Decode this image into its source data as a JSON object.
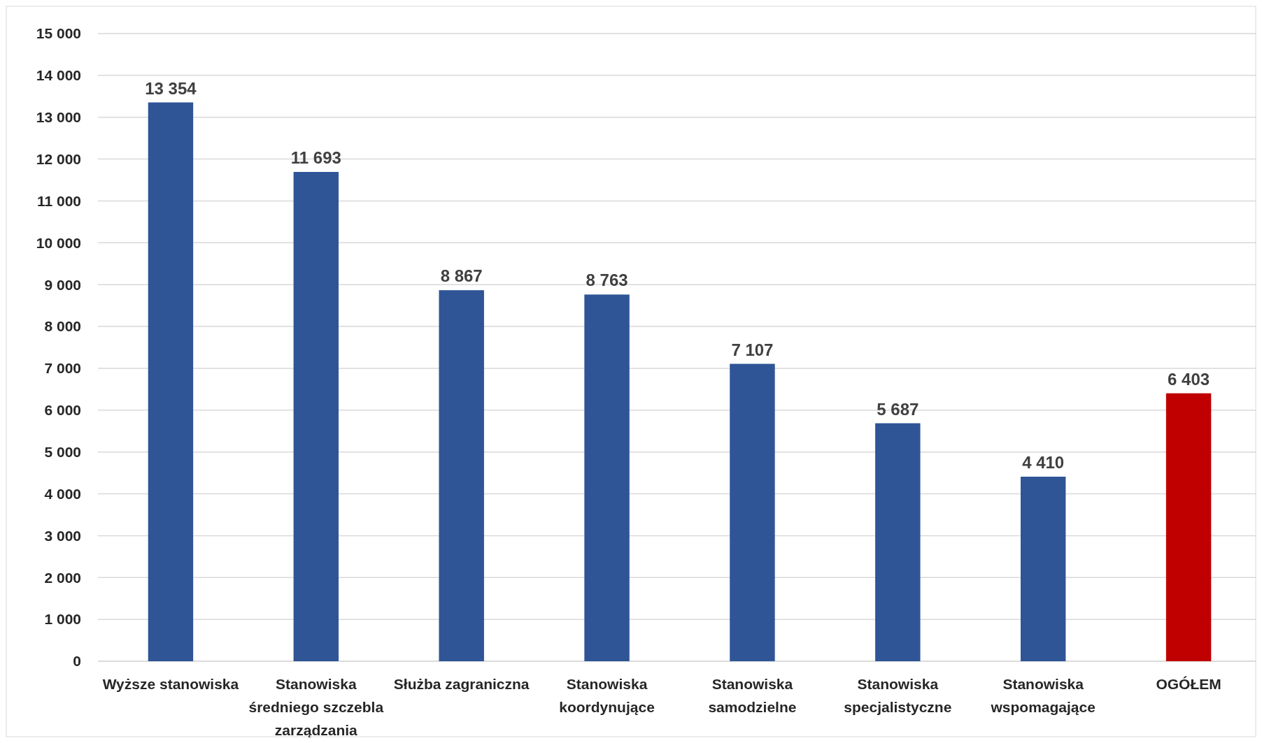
{
  "chart_data": {
    "type": "bar",
    "categories": [
      "Wyższe stanowiska",
      "Stanowiska średniego szczebla zarządzania",
      "Służba zagraniczna",
      "Stanowiska koordynujące",
      "Stanowiska samodzielne",
      "Stanowiska specjalistyczne",
      "Stanowiska wspomagające",
      "OGÓŁEM"
    ],
    "values": [
      13354,
      11693,
      8867,
      8763,
      7107,
      5687,
      4410,
      6403
    ],
    "value_labels": [
      "13 354",
      "11 693",
      "8 867",
      "8 763",
      "7 107",
      "5 687",
      "4 410",
      "6 403"
    ],
    "colors": [
      "#2f5597",
      "#2f5597",
      "#2f5597",
      "#2f5597",
      "#2f5597",
      "#2f5597",
      "#2f5597",
      "#c00000"
    ],
    "ylim": [
      0,
      15000
    ],
    "yticks": [
      0,
      {
        "value": 1000,
        "label": "1 000"
      },
      {
        "value": 2000,
        "label": "2 000"
      },
      {
        "value": 3000,
        "label": "3 000"
      },
      {
        "value": 4000,
        "label": "4 000"
      },
      {
        "value": 5000,
        "label": "5 000"
      },
      {
        "value": 6000,
        "label": "6 000"
      },
      {
        "value": 7000,
        "label": "7 000"
      },
      {
        "value": 8000,
        "label": "8 000"
      },
      {
        "value": 9000,
        "label": "9 000"
      },
      {
        "value": 10000,
        "label": "10 000"
      },
      {
        "value": 11000,
        "label": "11 000"
      },
      {
        "value": 12000,
        "label": "12 000"
      },
      {
        "value": 13000,
        "label": "13 000"
      },
      {
        "value": 14000,
        "label": "14 000"
      },
      {
        "value": 15000,
        "label": "15 000"
      }
    ],
    "grid": "y"
  }
}
